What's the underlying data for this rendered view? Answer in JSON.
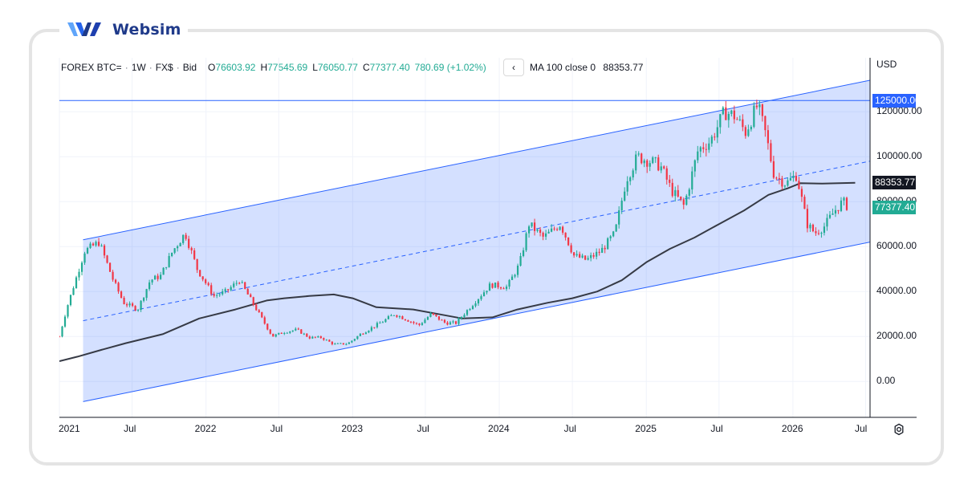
{
  "brand": {
    "name": "Websim"
  },
  "legend": {
    "symbol": "FOREX BTC=",
    "interval": "1W",
    "source": "FX$",
    "side": "Bid",
    "open_label": "O",
    "open": "76603.92",
    "high_label": "H",
    "high": "77545.69",
    "low_label": "L",
    "low": "76050.77",
    "close_label": "C",
    "close": "77377.40",
    "change": "780.69 (+1.02%)",
    "nav_glyph": "‹"
  },
  "ma_legend": {
    "label": "MA 100 close 0",
    "value": "88353.77"
  },
  "colors": {
    "up": "#22ab94",
    "down": "#f23645",
    "channel_line": "#2962ff",
    "channel_fill": "#2962ff",
    "ma_line": "#363a45",
    "hline": "#2962ff",
    "grid": "#f0f3fa"
  },
  "chart_data": {
    "type": "line",
    "instrument": "FOREX BTC=",
    "currency_label": "USD",
    "interval": "1W",
    "x_ticks": [
      "2021",
      "Jul",
      "2022",
      "Jul",
      "2023",
      "Jul",
      "2024",
      "Jul",
      "2025",
      "Jul",
      "2026",
      "Jul"
    ],
    "y_ticks": [
      "0.00",
      "20000.00",
      "40000.00",
      "60000.00",
      "80000.00",
      "100000.00",
      "120000.00"
    ],
    "y_range": [
      -16000,
      144000
    ],
    "x_range": [
      "2021-01-01",
      "2026-07-12"
    ],
    "grid": true,
    "series": [
      {
        "kind": "candles",
        "points": [
          [
            "2021-01-01",
            20000
          ],
          [
            "2021-01-20",
            33000
          ],
          [
            "2021-02-10",
            45000
          ],
          [
            "2021-03-05",
            58000
          ],
          [
            "2021-04-10",
            62000
          ],
          [
            "2021-05-15",
            45000
          ],
          [
            "2021-06-10",
            35000
          ],
          [
            "2021-07-15",
            32000
          ],
          [
            "2021-08-15",
            45000
          ],
          [
            "2021-09-10",
            47000
          ],
          [
            "2021-10-10",
            58000
          ],
          [
            "2021-11-10",
            66000
          ],
          [
            "2021-12-10",
            50000
          ],
          [
            "2022-01-20",
            38000
          ],
          [
            "2022-02-20",
            40000
          ],
          [
            "2022-03-25",
            45000
          ],
          [
            "2022-05-10",
            31000
          ],
          [
            "2022-06-15",
            20000
          ],
          [
            "2022-07-15",
            22000
          ],
          [
            "2022-08-15",
            23000
          ],
          [
            "2022-09-15",
            19500
          ],
          [
            "2022-10-15",
            19500
          ],
          [
            "2022-11-15",
            16500
          ],
          [
            "2022-12-20",
            16800
          ],
          [
            "2023-01-20",
            21000
          ],
          [
            "2023-03-20",
            27000
          ],
          [
            "2023-04-15",
            30000
          ],
          [
            "2023-06-15",
            25000
          ],
          [
            "2023-07-15",
            30000
          ],
          [
            "2023-08-20",
            26000
          ],
          [
            "2023-09-15",
            26000
          ],
          [
            "2023-10-25",
            34000
          ],
          [
            "2023-12-10",
            43000
          ],
          [
            "2024-01-20",
            42000
          ],
          [
            "2024-02-20",
            52000
          ],
          [
            "2024-03-15",
            70000
          ],
          [
            "2024-04-20",
            64000
          ],
          [
            "2024-06-01",
            70000
          ],
          [
            "2024-07-05",
            56000
          ],
          [
            "2024-08-05",
            54000
          ],
          [
            "2024-09-10",
            58000
          ],
          [
            "2024-10-15",
            66000
          ],
          [
            "2024-11-12",
            90000
          ],
          [
            "2024-12-10",
            100000
          ],
          [
            "2025-01-10",
            98000
          ],
          [
            "2025-02-05",
            96000
          ],
          [
            "2025-03-05",
            85000
          ],
          [
            "2025-04-05",
            78000
          ],
          [
            "2025-05-10",
            103000
          ],
          [
            "2025-06-10",
            107000
          ],
          [
            "2025-07-15",
            120000
          ],
          [
            "2025-08-10",
            118000
          ],
          [
            "2025-09-05",
            111000
          ],
          [
            "2025-10-05",
            123000
          ],
          [
            "2025-10-25",
            110000
          ],
          [
            "2025-11-15",
            92000
          ],
          [
            "2025-12-15",
            88000
          ],
          [
            "2026-01-10",
            92000
          ],
          [
            "2026-02-05",
            70000
          ],
          [
            "2026-02-25",
            66000
          ],
          [
            "2026-03-20",
            69000
          ],
          [
            "2026-04-15",
            76000
          ],
          [
            "2026-05-05",
            80000
          ],
          [
            "2026-05-20",
            77377.4
          ]
        ]
      },
      {
        "name": "MA 100 close 0",
        "kind": "line",
        "points": [
          [
            "2021-01-01",
            9000
          ],
          [
            "2021-02-15",
            11000
          ],
          [
            "2021-04-15",
            14000
          ],
          [
            "2021-06-15",
            17000
          ],
          [
            "2021-09-15",
            21000
          ],
          [
            "2021-12-15",
            28000
          ],
          [
            "2022-03-15",
            32000
          ],
          [
            "2022-06-01",
            36000
          ],
          [
            "2022-07-15",
            37000
          ],
          [
            "2022-09-15",
            38000
          ],
          [
            "2022-11-15",
            38700
          ],
          [
            "2023-01-01",
            37000
          ],
          [
            "2023-03-01",
            33000
          ],
          [
            "2023-06-01",
            32000
          ],
          [
            "2023-08-01",
            30000
          ],
          [
            "2023-10-01",
            28000
          ],
          [
            "2023-12-15",
            28500
          ],
          [
            "2024-02-15",
            32000
          ],
          [
            "2024-05-01",
            35000
          ],
          [
            "2024-07-01",
            37000
          ],
          [
            "2024-09-01",
            40000
          ],
          [
            "2024-11-01",
            45000
          ],
          [
            "2025-01-01",
            53000
          ],
          [
            "2025-03-01",
            59000
          ],
          [
            "2025-05-01",
            64000
          ],
          [
            "2025-07-01",
            70000
          ],
          [
            "2025-09-01",
            76000
          ],
          [
            "2025-11-01",
            83000
          ],
          [
            "2025-12-20",
            86000
          ],
          [
            "2026-01-20",
            88200
          ],
          [
            "2026-03-15",
            88000
          ],
          [
            "2026-06-05",
            88353.77
          ]
        ]
      },
      {
        "name": "channel",
        "kind": "parallel_channel",
        "upper": [
          [
            "2021-03-01",
            63000
          ],
          [
            "2026-07-12",
            134000
          ]
        ],
        "middle": [
          [
            "2021-03-01",
            27000
          ],
          [
            "2026-07-12",
            98000
          ]
        ],
        "lower": [
          [
            "2021-03-01",
            -9000
          ],
          [
            "2026-07-12",
            62000
          ]
        ]
      },
      {
        "kind": "horizontal_line",
        "value": 125000
      }
    ],
    "price_labels": [
      {
        "text": "125000.00",
        "value": 125000,
        "color": "#2962ff"
      },
      {
        "text": "88353.77",
        "value": 88353.77,
        "color": "#131722"
      },
      {
        "text": "77377.40",
        "value": 77377.4,
        "color": "#22ab94"
      }
    ]
  }
}
